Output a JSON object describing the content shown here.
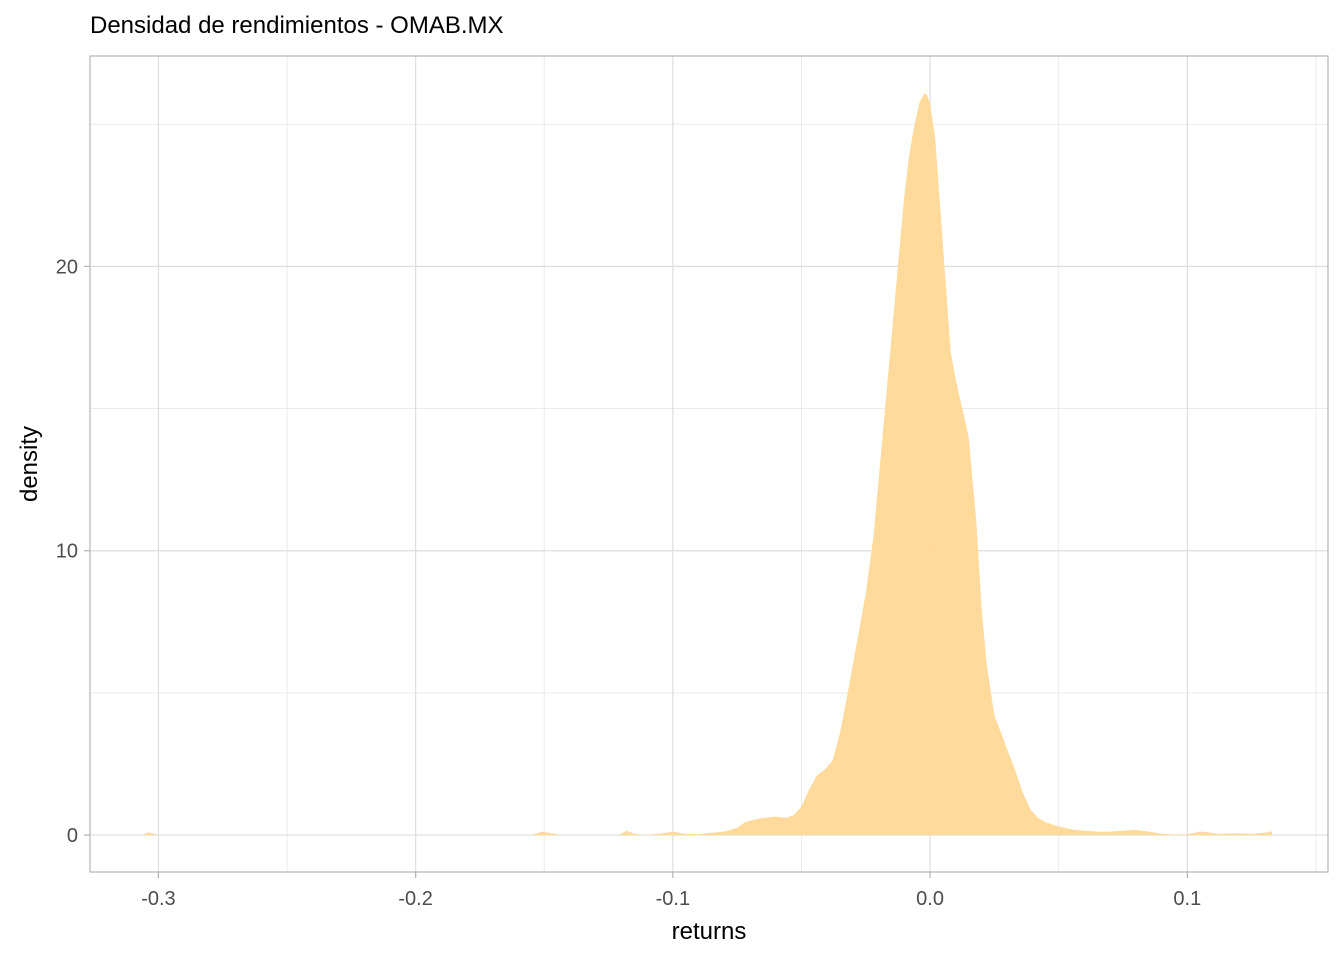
{
  "chart_data": {
    "type": "area",
    "title": "Densidad de rendimientos - OMAB.MX",
    "xlabel": "returns",
    "ylabel": "density",
    "xlim": [
      -0.3266,
      0.1547
    ],
    "ylim": [
      -1.3,
      27.4
    ],
    "x_ticks": [
      -0.3,
      -0.2,
      -0.1,
      0.0,
      0.1
    ],
    "x_tick_labels": [
      "-0.3",
      "-0.2",
      "-0.1",
      "0.0",
      "0.1"
    ],
    "y_ticks": [
      0,
      10,
      20
    ],
    "y_tick_labels": [
      "0",
      "10",
      "20"
    ],
    "grid": true,
    "fill_color": "#FFD896",
    "series": [
      {
        "x": [
          -0.306,
          -0.304,
          -0.302,
          -0.3,
          -0.155,
          -0.151,
          -0.147,
          -0.143,
          -0.121,
          -0.118,
          -0.115,
          -0.111,
          -0.105,
          -0.1,
          -0.095,
          -0.09,
          -0.085,
          -0.08,
          -0.075,
          -0.072,
          -0.068,
          -0.065,
          -0.06,
          -0.056,
          -0.053,
          -0.05,
          -0.047,
          -0.044,
          -0.041,
          -0.038,
          -0.035,
          -0.032,
          -0.03,
          -0.028,
          -0.025,
          -0.022,
          -0.02,
          -0.018,
          -0.015,
          -0.012,
          -0.01,
          -0.008,
          -0.006,
          -0.004,
          -0.002,
          -0.001,
          0.0,
          0.002,
          0.004,
          0.006,
          0.008,
          0.01,
          0.012,
          0.015,
          0.018,
          0.02,
          0.022,
          0.025,
          0.028,
          0.03,
          0.033,
          0.036,
          0.039,
          0.042,
          0.045,
          0.05,
          0.055,
          0.06,
          0.065,
          0.07,
          0.075,
          0.08,
          0.085,
          0.09,
          0.095,
          0.1,
          0.105,
          0.108,
          0.112,
          0.115,
          0.12,
          0.125,
          0.13,
          0.133
        ],
        "y": [
          0,
          0.1,
          0.05,
          0,
          0,
          0.12,
          0.06,
          0,
          0,
          0.15,
          0.05,
          0,
          0.05,
          0.12,
          0.04,
          0.03,
          0.08,
          0.12,
          0.25,
          0.45,
          0.55,
          0.6,
          0.65,
          0.6,
          0.7,
          1.0,
          1.6,
          2.1,
          2.3,
          2.6,
          3.6,
          5.0,
          6.0,
          7.0,
          8.5,
          10.5,
          12.5,
          14.5,
          17.5,
          20.5,
          22.5,
          24.0,
          25.0,
          25.8,
          26.1,
          26.0,
          25.7,
          24.5,
          22.0,
          19.5,
          17.0,
          16.0,
          15.2,
          14.0,
          11.0,
          8.0,
          6.0,
          4.2,
          3.5,
          3.0,
          2.3,
          1.5,
          0.9,
          0.6,
          0.45,
          0.3,
          0.2,
          0.15,
          0.12,
          0.12,
          0.15,
          0.18,
          0.12,
          0.05,
          0.02,
          0.03,
          0.12,
          0.1,
          0.04,
          0.05,
          0.06,
          0.04,
          0.08,
          0.13
        ]
      }
    ]
  }
}
